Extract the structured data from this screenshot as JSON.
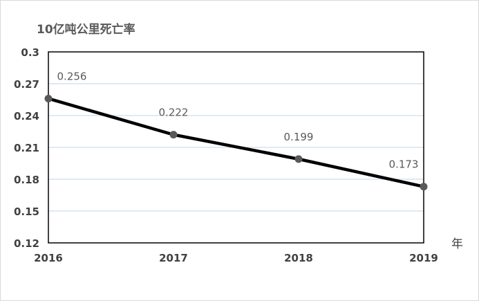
{
  "chart_data": {
    "type": "line",
    "title": "",
    "ylabel": "10亿吨公里死亡率",
    "xlabel": "年",
    "categories": [
      "2016",
      "2017",
      "2018",
      "2019"
    ],
    "series": [
      {
        "values": [
          0.256,
          0.222,
          0.199,
          0.173
        ]
      }
    ],
    "data_labels": [
      "0.256",
      "0.222",
      "0.199",
      "0.173"
    ],
    "ylim": [
      0.12,
      0.3
    ],
    "yticks": [
      0.12,
      0.15,
      0.18,
      0.21,
      0.24,
      0.27,
      0.3
    ],
    "ytick_labels": [
      "0.12",
      "0.15",
      "0.18",
      "0.21",
      "0.24",
      "0.27",
      "0.3"
    ],
    "grid": "horizontal",
    "legend": "none",
    "colors": {
      "line": "#000000",
      "marker": "#595959",
      "grid": "#c5d3e0",
      "plot_border": "#000000"
    }
  }
}
